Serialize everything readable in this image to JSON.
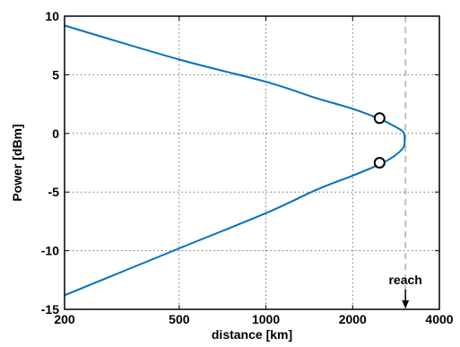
{
  "chart_data": {
    "type": "line",
    "xlabel": "distance [km]",
    "ylabel": "Power [dBm]",
    "x_scale": "log",
    "xlim": [
      200,
      4000
    ],
    "ylim": [
      -15,
      10
    ],
    "x_ticks": [
      200,
      500,
      1000,
      2000,
      4000
    ],
    "x_tick_labels": [
      "200",
      "500",
      "1000",
      "2000",
      "4000"
    ],
    "y_ticks": [
      -15,
      -10,
      -5,
      0,
      5,
      10
    ],
    "y_tick_labels": [
      "-15",
      "-10",
      "-5",
      "0",
      "5",
      "10"
    ],
    "grid": true,
    "series": [
      {
        "color": "#0072bd",
        "points": [
          {
            "x": 200,
            "y": 9.2
          },
          {
            "x": 500,
            "y": 6.3
          },
          {
            "x": 1000,
            "y": 4.4
          },
          {
            "x": 1500,
            "y": 3.0
          },
          {
            "x": 2000,
            "y": 2.1
          },
          {
            "x": 2500,
            "y": 1.2
          },
          {
            "x": 2800,
            "y": 0.6
          },
          {
            "x": 3000,
            "y": 0.1
          },
          {
            "x": 3030,
            "y": -0.6
          },
          {
            "x": 3000,
            "y": -1.2
          },
          {
            "x": 2800,
            "y": -1.9
          },
          {
            "x": 2500,
            "y": -2.6
          },
          {
            "x": 2000,
            "y": -3.6
          },
          {
            "x": 1500,
            "y": -4.8
          },
          {
            "x": 1000,
            "y": -6.8
          },
          {
            "x": 500,
            "y": -9.8
          },
          {
            "x": 200,
            "y": -13.8
          }
        ]
      }
    ],
    "markers": [
      {
        "x": 2480,
        "y": 1.3
      },
      {
        "x": 2480,
        "y": -2.5
      }
    ],
    "reach_line": {
      "x": 3050,
      "color": "#bfbfbf"
    },
    "annotation": {
      "text": "reach",
      "x": 3050
    }
  }
}
